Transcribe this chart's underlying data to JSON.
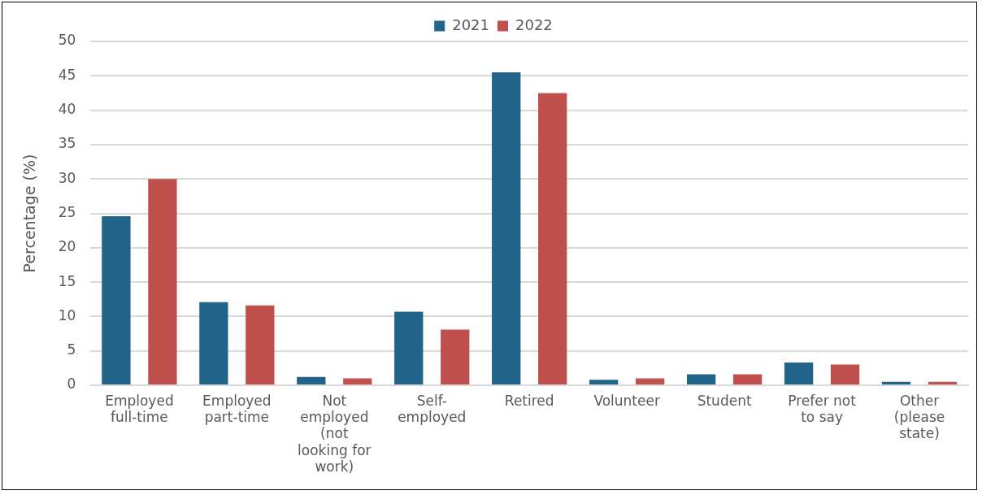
{
  "chart_data": {
    "type": "bar",
    "ylabel": "Percentage (%)",
    "categories": [
      "Employed full-time",
      "Employed part-time",
      "Not employed (not looking for work)",
      "Self-employed",
      "Retired",
      "Volunteer",
      "Student",
      "Prefer not to say",
      "Other (please state)"
    ],
    "series": [
      {
        "name": "2021",
        "color": "#23648a",
        "values": [
          24.6,
          12.1,
          1.2,
          10.7,
          45.5,
          0.8,
          1.6,
          3.3,
          0.5
        ]
      },
      {
        "name": "2022",
        "color": "#c0504d",
        "values": [
          30,
          11.6,
          1.0,
          8.1,
          42.5,
          1.0,
          1.6,
          3.0,
          0.5
        ]
      }
    ],
    "ylim": [
      0,
      50
    ],
    "yticks": [
      0,
      5,
      10,
      15,
      20,
      25,
      30,
      35,
      40,
      45,
      50
    ],
    "grid": "y",
    "legend": "top"
  }
}
